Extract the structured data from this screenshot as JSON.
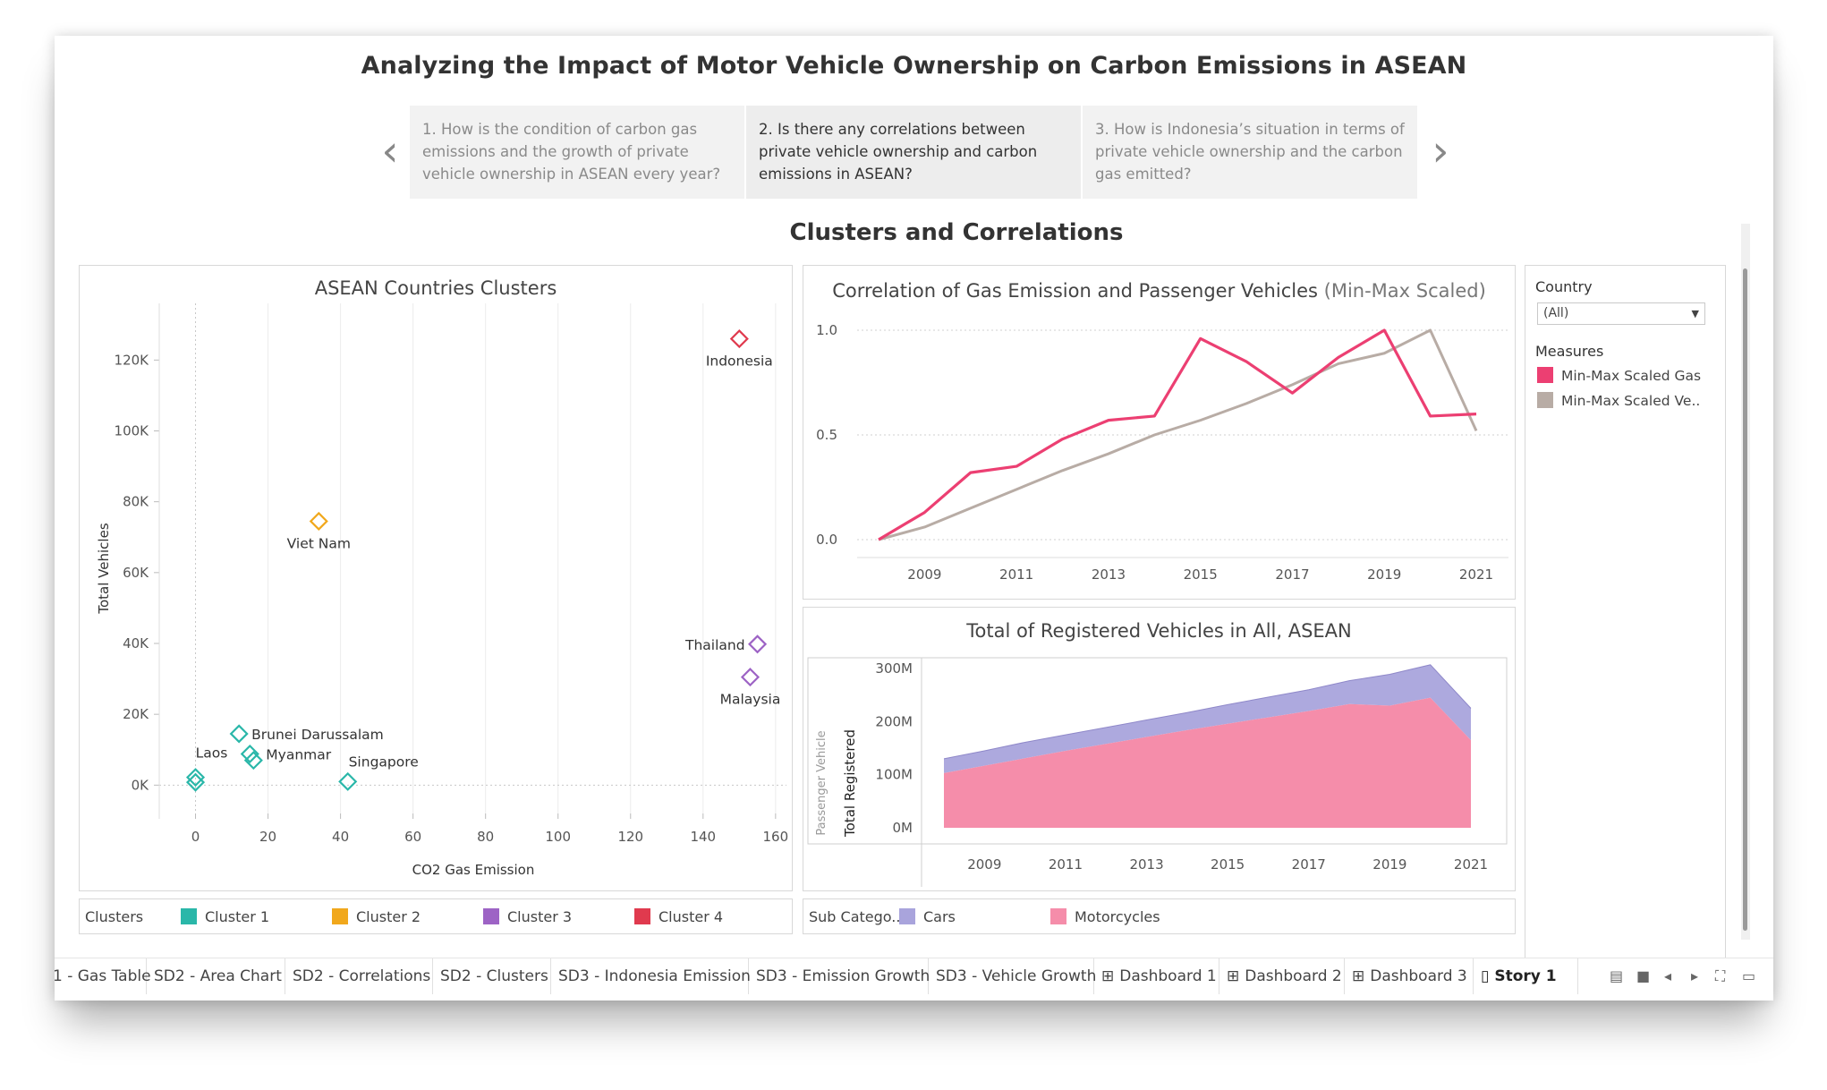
{
  "story": {
    "title": "Analyzing the Impact of Motor Vehicle Ownership on Carbon Emissions in ASEAN",
    "points": [
      "1. How is the condition of carbon gas emissions and the growth of private vehicle ownership in ASEAN every year?",
      "2. Is there any correlations between private vehicle ownership and carbon emissions in ASEAN?",
      "3. How is Indonesia’s situation in terms of private vehicle ownership and the carbon gas emitted?"
    ],
    "active_point": 1,
    "prev_arrow": "‹",
    "next_arrow": "›",
    "section_title": "Clusters and Correlations"
  },
  "colors": {
    "cluster1": "#2ab7a9",
    "cluster2": "#f1a81c",
    "cluster3": "#9d63c5",
    "cluster4": "#e03a4e",
    "gas": "#ec3f72",
    "vehicles": "#b8aca5",
    "cars": "#a9a4dc",
    "motorcycles": "#f58daa"
  },
  "chart_data": [
    {
      "type": "scatter",
      "title": "ASEAN Countries Clusters",
      "xlabel": "CO2 Gas Emission",
      "ylabel": "Total Vehicles",
      "xlim": [
        -10,
        163
      ],
      "ylim": [
        -8000,
        136000
      ],
      "x_ticks": [
        "0",
        "20",
        "40",
        "60",
        "80",
        "100",
        "120",
        "140",
        "160"
      ],
      "y_ticks": [
        "0K",
        "20K",
        "40K",
        "60K",
        "80K",
        "100K",
        "120K"
      ],
      "grid": "vertical",
      "marker": "diamond",
      "points": [
        {
          "label": "Indonesia",
          "x": 150,
          "y": 126000,
          "cluster": "Cluster 4"
        },
        {
          "label": "Viet Nam",
          "x": 34,
          "y": 74500,
          "cluster": "Cluster 2"
        },
        {
          "label": "Thailand",
          "x": 155,
          "y": 39800,
          "cluster": "Cluster 3"
        },
        {
          "label": "Malaysia",
          "x": 153,
          "y": 30500,
          "cluster": "Cluster 3"
        },
        {
          "label": "Brunei Darussalam",
          "x": 12,
          "y": 14500,
          "cluster": "Cluster 1"
        },
        {
          "label": "Laos",
          "x": 0,
          "y": 2200,
          "cluster": "Cluster 1"
        },
        {
          "label": "Laos",
          "x": 0,
          "y": 800,
          "cluster": "Cluster 1"
        },
        {
          "label": "Myanmar",
          "x": 15,
          "y": 8800,
          "cluster": "Cluster 1"
        },
        {
          "label": "Myanmar",
          "x": 16,
          "y": 7000,
          "cluster": "Cluster 1"
        },
        {
          "label": "Singapore",
          "x": 42,
          "y": 1000,
          "cluster": "Cluster 1"
        }
      ],
      "legend": {
        "title": "Clusters",
        "items": [
          "Cluster 1",
          "Cluster 2",
          "Cluster 3",
          "Cluster 4"
        ]
      }
    },
    {
      "type": "line",
      "title": "Correlation of Gas Emission and Passenger Vehicles",
      "title_suffix": "(Min-Max Scaled)",
      "x": [
        2008,
        2009,
        2010,
        2011,
        2012,
        2013,
        2014,
        2015,
        2016,
        2017,
        2018,
        2019,
        2020,
        2021
      ],
      "x_ticks": [
        "2009",
        "2011",
        "2013",
        "2015",
        "2017",
        "2019",
        "2021"
      ],
      "y_ticks": [
        "0.0",
        "0.5",
        "1.0"
      ],
      "ylim": [
        0,
        1.0
      ],
      "series": [
        {
          "name": "Min-Max Scaled Gas",
          "values": [
            0.0,
            0.13,
            0.32,
            0.35,
            0.48,
            0.57,
            0.59,
            0.96,
            0.85,
            0.7,
            0.87,
            1.0,
            0.59,
            0.6
          ]
        },
        {
          "name": "Min-Max Scaled Ve..",
          "values": [
            0.0,
            0.06,
            0.15,
            0.24,
            0.33,
            0.41,
            0.5,
            0.57,
            0.65,
            0.74,
            0.84,
            0.89,
            1.0,
            0.52
          ]
        }
      ],
      "legend": {
        "filter_title": "Country",
        "filter_value": "(All)",
        "measures_title": "Measures",
        "items": [
          "Min-Max Scaled Gas",
          "Min-Max Scaled Ve.."
        ]
      }
    },
    {
      "type": "area",
      "title": "Total of Registered Vehicles in All, ASEAN",
      "ylabel": "Total Registered",
      "ylabel2": "Passenger Vehicle",
      "x": [
        2008,
        2009,
        2010,
        2011,
        2012,
        2013,
        2014,
        2015,
        2016,
        2017,
        2018,
        2019,
        2020,
        2021
      ],
      "x_ticks": [
        "2009",
        "2011",
        "2013",
        "2015",
        "2017",
        "2019",
        "2021"
      ],
      "y_ticks": [
        "0M",
        "100M",
        "200M",
        "300M"
      ],
      "ylim": [
        0,
        300
      ],
      "series": [
        {
          "name": "Motorcycles",
          "values": [
            103,
            117,
            131,
            145,
            158,
            171,
            184,
            196,
            208,
            220,
            233,
            230,
            245,
            165
          ]
        },
        {
          "name": "Cars",
          "values": [
            27,
            28,
            30,
            30,
            31,
            32,
            33,
            36,
            38,
            40,
            44,
            59,
            62,
            60
          ]
        }
      ],
      "legend": {
        "title": "Sub Catego..",
        "items": [
          "Cars",
          "Motorcycles"
        ]
      }
    }
  ],
  "tabs": [
    {
      "label": "1 - Gas Table",
      "icon": ""
    },
    {
      "label": "SD2 - Area Chart",
      "icon": ""
    },
    {
      "label": "SD2 - Correlations",
      "icon": ""
    },
    {
      "label": "SD2 - Clusters",
      "icon": ""
    },
    {
      "label": "SD3 - Indonesia Emission",
      "icon": ""
    },
    {
      "label": "SD3 - Emission Growth",
      "icon": ""
    },
    {
      "label": "SD3 - Vehicle Growth",
      "icon": ""
    },
    {
      "label": "Dashboard 1",
      "icon": "⊞"
    },
    {
      "label": "Dashboard 2",
      "icon": "⊞"
    },
    {
      "label": "Dashboard 3",
      "icon": "⊞"
    },
    {
      "label": "Story 1",
      "icon": "▯"
    }
  ],
  "active_tab": "Story 1"
}
